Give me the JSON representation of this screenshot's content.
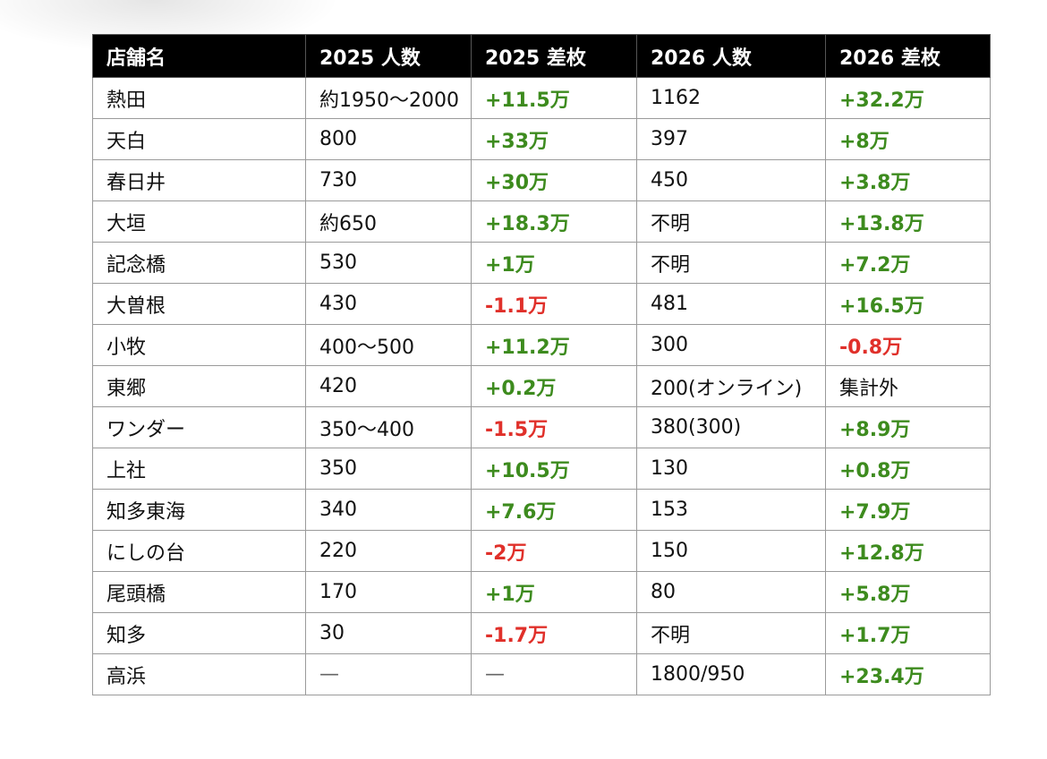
{
  "table": {
    "headers": [
      "店舗名",
      "2025 人数",
      "2025 差枚",
      "2026 人数",
      "2026 差枚"
    ],
    "colors": {
      "positive": "#3d8b1e",
      "negative": "#e0302a",
      "header_bg": "#000000"
    },
    "rows": [
      [
        "熱田",
        "約1950〜2000",
        "+11.5万",
        "1162",
        "+32.2万"
      ],
      [
        "天白",
        "800",
        "+33万",
        "397",
        "+8万"
      ],
      [
        "春日井",
        "730",
        "+30万",
        "450",
        "+3.8万"
      ],
      [
        "大垣",
        "約650",
        "+18.3万",
        "不明",
        "+13.8万"
      ],
      [
        "記念橋",
        "530",
        "+1万",
        "不明",
        "+7.2万"
      ],
      [
        "大曽根",
        "430",
        "-1.1万",
        "481",
        "+16.5万"
      ],
      [
        "小牧",
        "400〜500",
        "+11.2万",
        "300",
        "-0.8万"
      ],
      [
        "東郷",
        "420",
        "+0.2万",
        "200(オンライン)",
        "集計外"
      ],
      [
        "ワンダー",
        "350〜400",
        "-1.5万",
        "380(300)",
        "+8.9万"
      ],
      [
        "上社",
        "350",
        "+10.5万",
        "130",
        "+0.8万"
      ],
      [
        "知多東海",
        "340",
        "+7.6万",
        "153",
        "+7.9万"
      ],
      [
        "にしの台",
        "220",
        "-2万",
        "150",
        "+12.8万"
      ],
      [
        "尾頭橋",
        "170",
        "+1万",
        "80",
        "+5.8万"
      ],
      [
        "知多",
        "30",
        "-1.7万",
        "不明",
        "+1.7万"
      ],
      [
        "高浜",
        "—",
        "—",
        "1800/950",
        "+23.4万"
      ]
    ]
  }
}
